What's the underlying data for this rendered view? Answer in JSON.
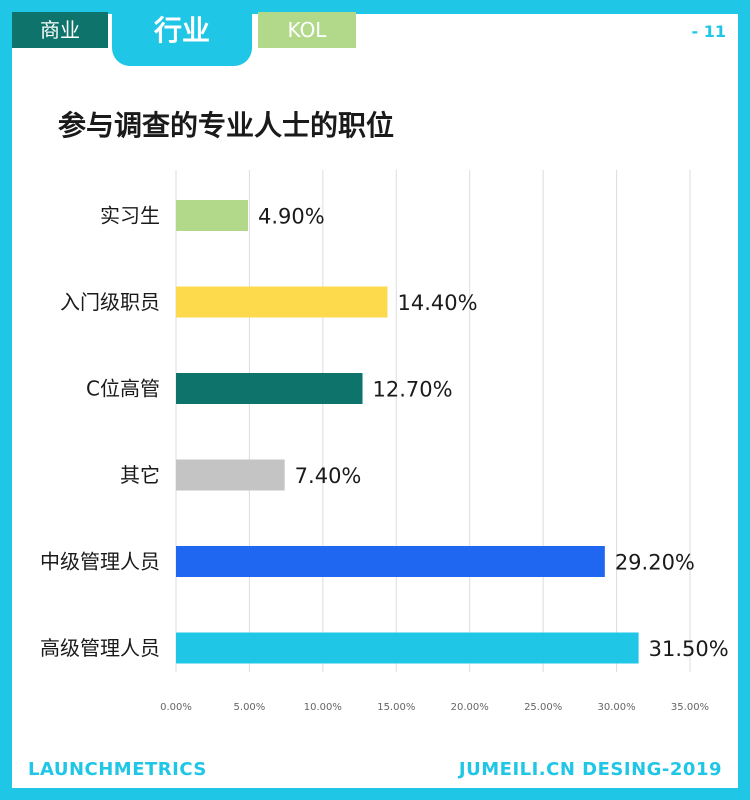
{
  "tabs": [
    {
      "label": "商业",
      "color": "#0e736a"
    },
    {
      "label": "行业",
      "color": "#1fc6e6",
      "active": true
    },
    {
      "label": "KOL",
      "color": "#b2d88a"
    }
  ],
  "page_number": "- 11",
  "footer": {
    "left": "LAUNCHMETRICS",
    "right": "JUMEILI.CN DESING-2019"
  },
  "colors": {
    "accent": "#1fc6e6",
    "grid": "#dddddd"
  },
  "chart_data": {
    "type": "bar",
    "orientation": "horizontal",
    "title": "参与调查的专业人士的职位",
    "xlim": [
      0,
      35
    ],
    "grid": true,
    "ticks": [
      "0.00%",
      "5.00%",
      "10.00%",
      "15.00%",
      "20.00%",
      "25.00%",
      "30.00%",
      "35.00%"
    ],
    "categories": [
      "实习生",
      "入门级职员",
      "C位高管",
      "其它",
      "中级管理人员",
      "高级管理人员"
    ],
    "values": [
      4.9,
      14.4,
      12.7,
      7.4,
      29.2,
      31.5
    ],
    "value_labels": [
      "4.90%",
      "14.40%",
      "12.70%",
      "7.40%",
      "29.20%",
      "31.50%"
    ],
    "bar_colors": [
      "#b2d88a",
      "#fdd94c",
      "#0e736a",
      "#c4c4c4",
      "#1f66f0",
      "#1fc6e6"
    ]
  }
}
